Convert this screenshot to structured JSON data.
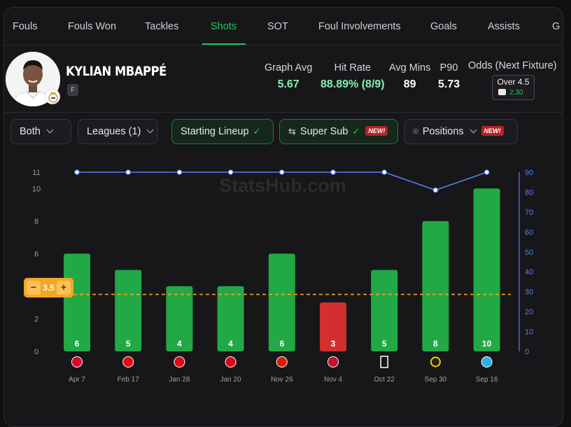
{
  "tabs": [
    {
      "label": "Fouls"
    },
    {
      "label": "Fouls Won"
    },
    {
      "label": "Tackles"
    },
    {
      "label": "Shots",
      "active": true
    },
    {
      "label": "SOT"
    },
    {
      "label": "Foul Involvements"
    },
    {
      "label": "Goals"
    },
    {
      "label": "Assists"
    },
    {
      "label": "G"
    }
  ],
  "player": {
    "name": "KYLIAN MBAPPÉ",
    "position": "F",
    "stats": {
      "graph_avg_label": "Graph Avg",
      "graph_avg": "5.67",
      "hit_rate_label": "Hit Rate",
      "hit_rate": "88.89% (8/9)",
      "avg_mins_label": "Avg Mins",
      "avg_mins": "89",
      "p90_label": "P90",
      "p90": "5.73"
    },
    "odds": {
      "label": "Odds (Next Fixture)",
      "line": "Over 4.5",
      "price": "2.30"
    }
  },
  "filters": {
    "both": "Both",
    "leagues": "Leagues (1)",
    "starting_lineup": "Starting Lineup",
    "super_sub": "Super Sub",
    "positions": "Positions",
    "new_badge": "NEW!"
  },
  "line_control": {
    "value": "3.5",
    "minus": "−",
    "plus": "+"
  },
  "colors": {
    "hit": "#22a845",
    "miss": "#d42f2f",
    "minutes_line": "#5b7cf0",
    "threshold": "#f5a623",
    "accent": "#22c55e"
  },
  "chart_data": {
    "type": "bar",
    "watermark": "StatsHub.com",
    "categories": [
      "Apr 7",
      "Feb 17",
      "Jan 28",
      "Jan 20",
      "Nov 26",
      "Nov 4",
      "Oct 22",
      "Sep 30",
      "Sep 16"
    ],
    "series": [
      {
        "values": [
          6,
          5,
          4,
          4,
          6,
          3,
          5,
          8,
          10
        ]
      },
      {
        "values": [
          90,
          90,
          90,
          90,
          90,
          90,
          90,
          81,
          90
        ]
      }
    ],
    "opponent_icons": [
      "bayern-icon",
      "benfica-icon",
      "benfica-icon",
      "monaco-icon",
      "olympiacos-icon",
      "liverpool-icon",
      "juventus-icon",
      "young-boys-icon",
      "marseille-icon"
    ],
    "left_ticks": [
      "0",
      "2",
      "4",
      "6",
      "8",
      "10",
      "11"
    ],
    "right_ticks": [
      "0",
      "10",
      "20",
      "30",
      "40",
      "50",
      "60",
      "70",
      "80",
      "90"
    ],
    "ylim": [
      0,
      11
    ],
    "y2lim": [
      0,
      90
    ],
    "threshold": 3.5,
    "grid": false,
    "legend": "none"
  }
}
